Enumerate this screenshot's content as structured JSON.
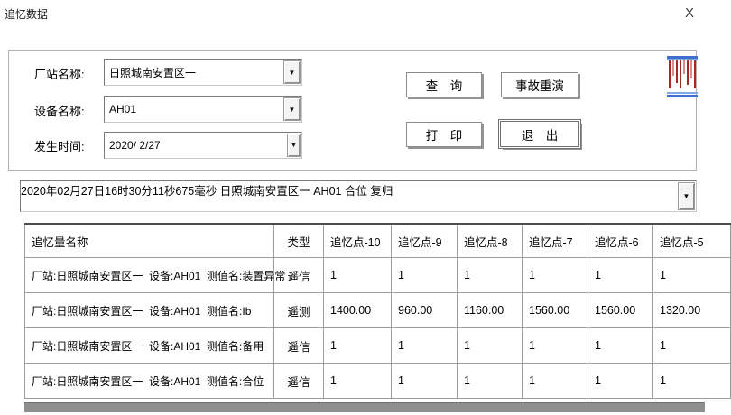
{
  "window": {
    "title": "追忆数据"
  },
  "icons": {
    "close": "X",
    "dropdown_arrow": "▼"
  },
  "filters": {
    "station": {
      "label": "厂站名称:",
      "value": "日照城南安置区一"
    },
    "device": {
      "label": "设备名称:",
      "value": "AH01"
    },
    "time": {
      "label": "发生时间:",
      "value": "2020/ 2/27"
    }
  },
  "actions": {
    "query": "查　询",
    "replay": "事故重演",
    "print": "打　印",
    "exit": "退　出"
  },
  "event_select": {
    "value": "2020年02月27日16时30分11秒675毫秒  日照城南安置区一  AH01  合位  复归"
  },
  "table": {
    "headers": [
      "追忆量名称",
      "类型",
      "追忆点-10",
      "追忆点-9",
      "追忆点-8",
      "追忆点-7",
      "追忆点-6",
      "追忆点-5"
    ],
    "rows": [
      {
        "name": "厂站:日照城南安置区一  设备:AH01  测值名:装置异常",
        "type": "遥信",
        "values": [
          "1",
          "1",
          "1",
          "1",
          "1",
          "1"
        ]
      },
      {
        "name": "厂站:日照城南安置区一  设备:AH01  测值名:Ib",
        "type": "遥测",
        "values": [
          "1400.00",
          "960.00",
          "1160.00",
          "1560.00",
          "1560.00",
          "1320.00"
        ]
      },
      {
        "name": "厂站:日照城南安置区一  设备:AH01  测值名:备用",
        "type": "遥信",
        "values": [
          "1",
          "1",
          "1",
          "1",
          "1",
          "1"
        ]
      },
      {
        "name": "厂站:日照城南安置区一  设备:AH01  测值名:合位",
        "type": "遥信",
        "values": [
          "1",
          "1",
          "1",
          "1",
          "1",
          "1"
        ]
      }
    ]
  },
  "colors": {
    "icon_blue": "#3f6fce",
    "icon_blue_light": "#7fa8e8",
    "icon_red_dark": "#a82828",
    "icon_red_light": "#d98c8c",
    "scrollbar_gray": "#8f8f8f",
    "grid_gray": "#9d9d9d"
  }
}
